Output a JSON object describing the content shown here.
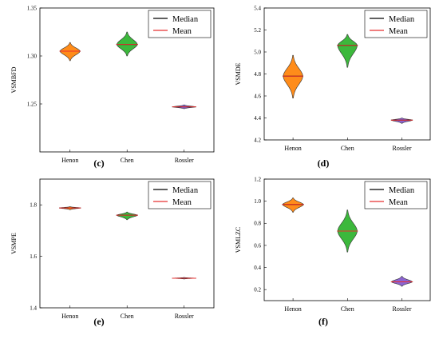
{
  "colors": {
    "henon": "#ff8c1a",
    "chen": "#3cb83c",
    "rossler": "#8c64d2",
    "median_line": "#000000",
    "mean_line": "#e83030"
  },
  "chart_data": [
    {
      "type": "violin",
      "panel_label": "(c)",
      "ylabel": "VSMBFD",
      "ylim": [
        1.2,
        1.35
      ],
      "yticks": [
        "1.25",
        "1.30",
        "1.35"
      ],
      "ytick_values": [
        1.25,
        1.3,
        1.35
      ],
      "categories": [
        "Henon",
        "Chen",
        "Rossler"
      ],
      "legend": {
        "median": "Median",
        "mean": "Mean",
        "position": "top-right"
      },
      "series": [
        {
          "category": "Henon",
          "median": 1.305,
          "mean": 1.305,
          "min": 1.295,
          "max": 1.314,
          "width": 0.35
        },
        {
          "category": "Chen",
          "median": 1.312,
          "mean": 1.312,
          "min": 1.3,
          "max": 1.325,
          "width": 0.36
        },
        {
          "category": "Rossler",
          "median": 1.247,
          "mean": 1.247,
          "min": 1.245,
          "max": 1.249,
          "width": 0.4
        }
      ]
    },
    {
      "type": "violin",
      "panel_label": "(d)",
      "ylabel": "VSMDE",
      "ylim": [
        4.2,
        5.4
      ],
      "yticks": [
        "4.2",
        "4.4",
        "4.6",
        "4.8",
        "5.0",
        "5.2",
        "5.4"
      ],
      "ytick_values": [
        4.2,
        4.4,
        4.6,
        4.8,
        5.0,
        5.2,
        5.4
      ],
      "categories": [
        "Henon",
        "Chen",
        "Rossler"
      ],
      "legend": {
        "median": "Median",
        "mean": "Mean",
        "position": "top-right"
      },
      "series": [
        {
          "category": "Henon",
          "median": 4.78,
          "mean": 4.78,
          "min": 4.58,
          "max": 4.97,
          "width": 0.36
        },
        {
          "category": "Chen",
          "median": 5.06,
          "mean": 5.06,
          "min": 4.86,
          "max": 5.16,
          "width": 0.36
        },
        {
          "category": "Rossler",
          "median": 4.38,
          "mean": 4.38,
          "min": 4.35,
          "max": 4.4,
          "width": 0.38
        }
      ]
    },
    {
      "type": "violin",
      "panel_label": "(e)",
      "ylabel": "VSMPE",
      "ylim": [
        1.4,
        1.9
      ],
      "yticks": [
        "1.4",
        "1.6",
        "1.8"
      ],
      "ytick_values": [
        1.4,
        1.6,
        1.8
      ],
      "categories": [
        "Henon",
        "Chen",
        "Rossler"
      ],
      "legend": {
        "median": "Median",
        "mean": "Mean",
        "position": "top-right"
      },
      "series": [
        {
          "category": "Henon",
          "median": 1.788,
          "mean": 1.788,
          "min": 1.781,
          "max": 1.793,
          "width": 0.36
        },
        {
          "category": "Chen",
          "median": 1.76,
          "mean": 1.76,
          "min": 1.742,
          "max": 1.772,
          "width": 0.36
        },
        {
          "category": "Rossler",
          "median": 1.515,
          "mean": 1.515,
          "min": 1.512,
          "max": 1.518,
          "width": 0.4
        }
      ]
    },
    {
      "type": "violin",
      "panel_label": "(f)",
      "ylabel": "VSMLZC",
      "ylim": [
        0.1,
        1.2
      ],
      "yticks": [
        "0.2",
        "0.4",
        "0.6",
        "0.8",
        "1.0",
        "1.2"
      ],
      "ytick_values": [
        0.2,
        0.4,
        0.6,
        0.8,
        1.0,
        1.2
      ],
      "categories": [
        "Henon",
        "Chen",
        "Rossler"
      ],
      "legend": {
        "median": "Median",
        "mean": "Mean",
        "position": "top-right"
      },
      "series": [
        {
          "category": "Henon",
          "median": 0.97,
          "mean": 0.97,
          "min": 0.9,
          "max": 1.03,
          "width": 0.38
        },
        {
          "category": "Chen",
          "median": 0.73,
          "mean": 0.73,
          "min": 0.54,
          "max": 0.92,
          "width": 0.36
        },
        {
          "category": "Rossler",
          "median": 0.27,
          "mean": 0.27,
          "min": 0.23,
          "max": 0.32,
          "width": 0.38
        }
      ]
    }
  ]
}
